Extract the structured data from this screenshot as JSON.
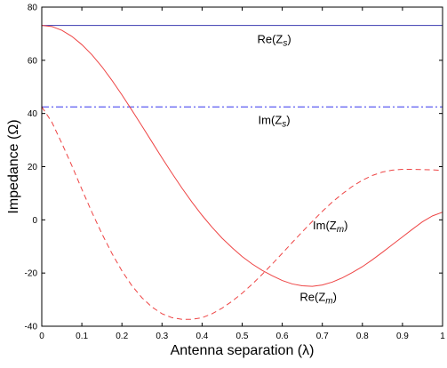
{
  "chart_data": {
    "type": "line",
    "title": "",
    "xlabel": "Antenna separation (λ)",
    "ylabel": "Impedance (Ω)",
    "xlim": [
      0,
      1
    ],
    "ylim": [
      -40,
      80
    ],
    "xticks": [
      0,
      0.1,
      0.2,
      0.3,
      0.4,
      0.5,
      0.6,
      0.7,
      0.8,
      0.9,
      1
    ],
    "xtick_labels": [
      "0",
      "0.1",
      "0.2",
      "0.3",
      "0.4",
      "0.5",
      "0.6",
      "0.7",
      "0.8",
      "0.9",
      "1"
    ],
    "yticks": [
      -40,
      -20,
      0,
      20,
      40,
      60,
      80
    ],
    "ytick_labels": [
      "-40",
      "-20",
      "0",
      "20",
      "40",
      "60",
      "80"
    ],
    "grid": false,
    "legend": "none",
    "series": [
      {
        "name": "Re(Zs)",
        "color": "#3a3ab0",
        "dash": "solid",
        "x": [
          0,
          1
        ],
        "y": [
          73.1,
          73.1
        ]
      },
      {
        "name": "Im(Zs)",
        "color": "#3333ee",
        "dash": "dashdot",
        "x": [
          0,
          1
        ],
        "y": [
          42.5,
          42.5
        ]
      },
      {
        "name": "Re(Zm)",
        "color": "#ee4444",
        "dash": "solid",
        "x": [
          0,
          0.025,
          0.05,
          0.075,
          0.1,
          0.125,
          0.15,
          0.175,
          0.2,
          0.225,
          0.25,
          0.275,
          0.3,
          0.325,
          0.35,
          0.375,
          0.4,
          0.425,
          0.45,
          0.475,
          0.5,
          0.525,
          0.55,
          0.575,
          0.6,
          0.625,
          0.65,
          0.675,
          0.7,
          0.725,
          0.75,
          0.775,
          0.8,
          0.825,
          0.85,
          0.875,
          0.9,
          0.925,
          0.95,
          0.975,
          1
        ],
        "y": [
          73.1,
          72.7,
          71.3,
          69.0,
          65.9,
          62.1,
          57.6,
          52.5,
          47.0,
          41.2,
          35.3,
          29.3,
          23.3,
          17.5,
          11.9,
          6.6,
          1.7,
          -2.8,
          -6.9,
          -10.5,
          -13.8,
          -16.6,
          -19.0,
          -21.0,
          -22.8,
          -24.1,
          -24.8,
          -25.0,
          -24.5,
          -23.4,
          -21.8,
          -19.8,
          -17.6,
          -15.0,
          -12.2,
          -9.3,
          -6.4,
          -3.5,
          -0.7,
          1.5,
          2.9
        ]
      },
      {
        "name": "Im(Zm)",
        "color": "#ee4444",
        "dash": "dashed",
        "x": [
          0,
          0.025,
          0.05,
          0.075,
          0.1,
          0.125,
          0.15,
          0.175,
          0.2,
          0.225,
          0.25,
          0.275,
          0.3,
          0.325,
          0.35,
          0.375,
          0.4,
          0.425,
          0.45,
          0.475,
          0.5,
          0.525,
          0.55,
          0.575,
          0.6,
          0.625,
          0.65,
          0.675,
          0.7,
          0.725,
          0.75,
          0.775,
          0.8,
          0.825,
          0.85,
          0.875,
          0.9,
          0.925,
          0.95,
          0.975,
          1
        ],
        "y": [
          42.5,
          36.8,
          28.8,
          20.4,
          11.5,
          2.9,
          -5.2,
          -12.6,
          -19.2,
          -24.8,
          -29.3,
          -32.8,
          -35.3,
          -36.8,
          -37.4,
          -37.4,
          -36.8,
          -35.3,
          -33.2,
          -30.6,
          -27.6,
          -24.2,
          -20.5,
          -16.6,
          -12.6,
          -8.5,
          -4.5,
          -0.6,
          3.2,
          6.7,
          9.8,
          12.6,
          14.9,
          16.7,
          18.0,
          18.7,
          19.0,
          19.0,
          18.9,
          18.8,
          18.6
        ]
      }
    ],
    "annotations": [
      {
        "name": "re-zs-label",
        "base": "Re(Z",
        "sub": "s",
        "tail": ")",
        "x": 0.58,
        "y": 66.5
      },
      {
        "name": "im-zs-label",
        "base": "Im(Z",
        "sub": "s",
        "tail": ")",
        "x": 0.58,
        "y": 36
      },
      {
        "name": "im-zm-label",
        "base": "Im(Z",
        "sub": "m",
        "tail": ")",
        "x": 0.72,
        "y": -3.5
      },
      {
        "name": "re-zm-label",
        "base": "Re(Z",
        "sub": "m",
        "tail": ")",
        "x": 0.69,
        "y": -30.5
      }
    ]
  }
}
